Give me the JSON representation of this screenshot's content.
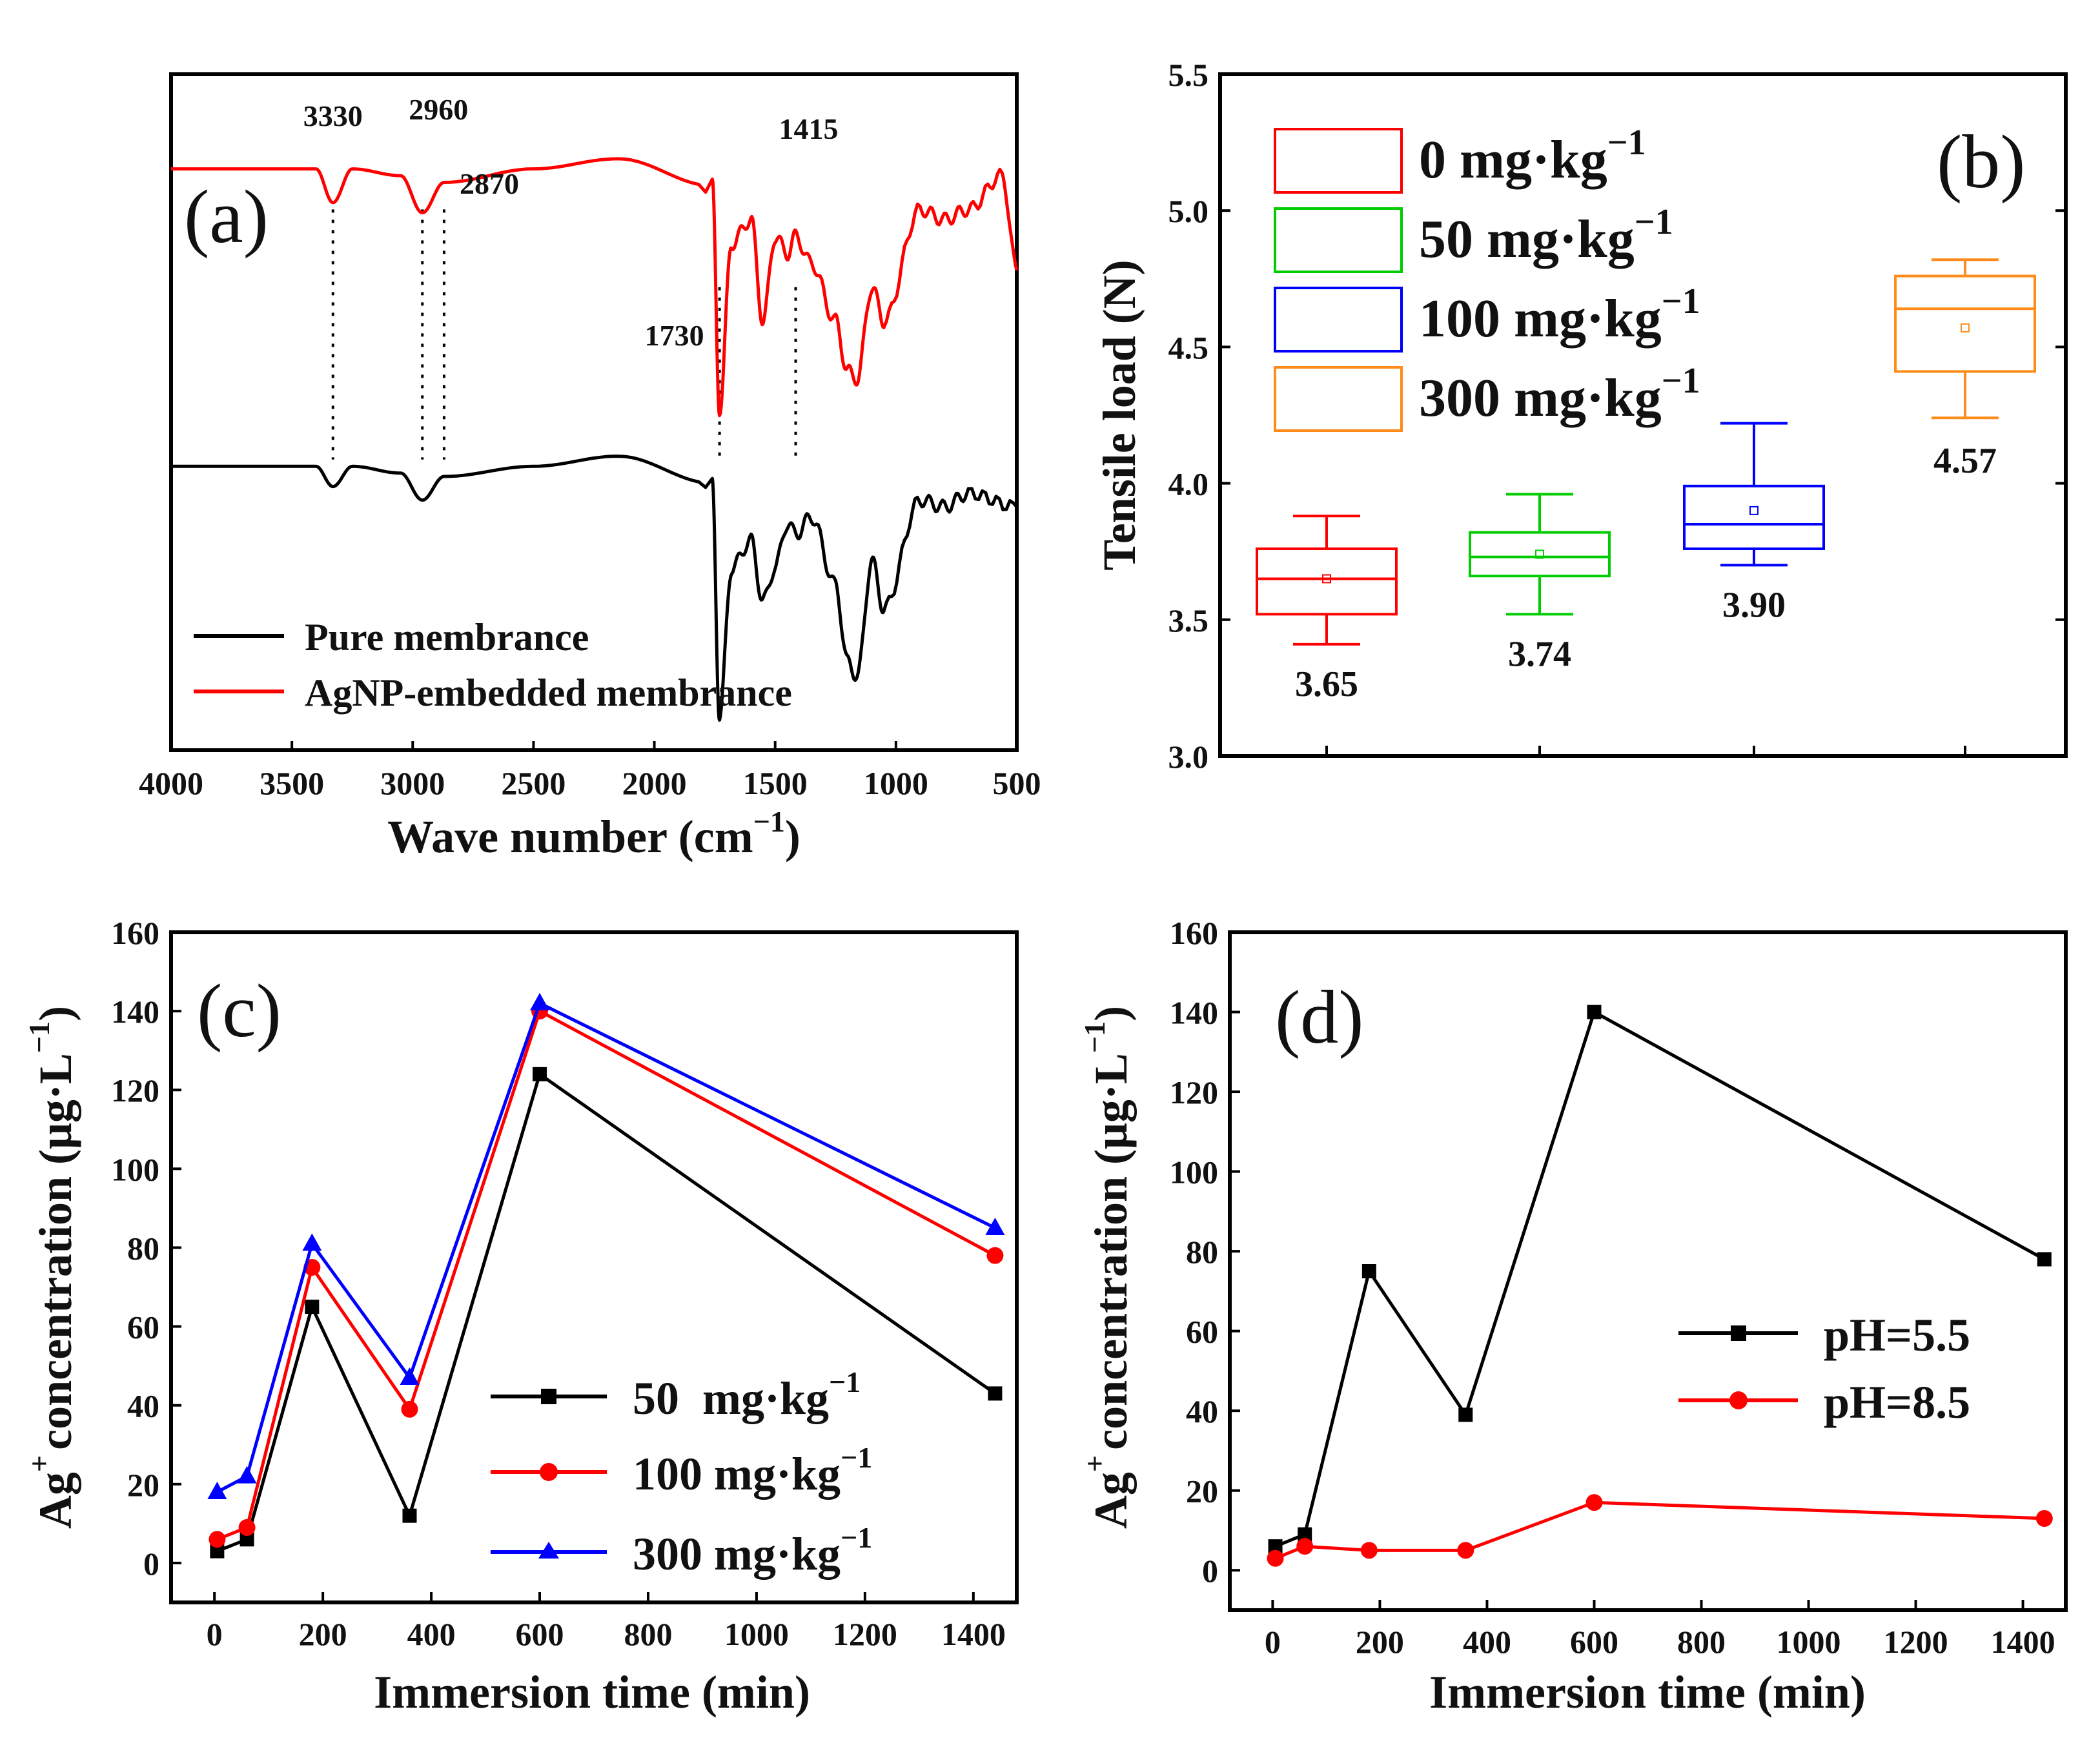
{
  "chart_data": [
    {
      "panel": "(a)",
      "type": "line",
      "title": "",
      "xlabel": "Wave number (cm",
      "xlabel_sup": "−1",
      "xlabel_end": ")",
      "ylabel": "",
      "xlim": [
        4000,
        500
      ],
      "xticks": [
        4000,
        3500,
        3000,
        2500,
        2000,
        1500,
        1000,
        500
      ],
      "series": [
        {
          "name": "Pure membrance",
          "color": "#000000",
          "baseline": 0.42,
          "x": [
            4000,
            3400,
            3330,
            3250,
            3050,
            2960,
            2870,
            2500,
            2150,
            1760,
            1730,
            1680,
            1600,
            1550,
            1500,
            1450,
            1415,
            1350,
            1250,
            1200,
            1160,
            1100,
            1050,
            900,
            800,
            700,
            500
          ],
          "y": [
            0.0,
            0.0,
            -0.06,
            0.0,
            -0.02,
            -0.1,
            -0.03,
            0.0,
            0.03,
            -0.05,
            -0.74,
            -0.3,
            -0.22,
            -0.4,
            -0.3,
            -0.17,
            -0.2,
            -0.15,
            -0.35,
            -0.58,
            -0.62,
            -0.28,
            -0.42,
            -0.1,
            -0.12,
            -0.08,
            -0.12
          ]
        },
        {
          "name": "AgNP-embedded membrance",
          "color": "#ff0000",
          "baseline": 0.86,
          "x": [
            4000,
            3400,
            3330,
            3250,
            3050,
            2960,
            2870,
            2500,
            2150,
            1760,
            1730,
            1680,
            1600,
            1550,
            1500,
            1450,
            1415,
            1350,
            1250,
            1200,
            1160,
            1100,
            1050,
            900,
            800,
            700,
            560,
            500
          ],
          "y": [
            0.0,
            0.0,
            -0.1,
            0.0,
            -0.02,
            -0.13,
            -0.04,
            0.0,
            0.03,
            -0.05,
            -0.71,
            -0.22,
            -0.15,
            -0.45,
            -0.2,
            -0.25,
            -0.2,
            -0.28,
            -0.45,
            -0.6,
            -0.62,
            -0.35,
            -0.45,
            -0.12,
            -0.15,
            -0.12,
            -0.02,
            -0.3
          ]
        }
      ],
      "annotations": [
        {
          "text": "3330",
          "x": 3330
        },
        {
          "text": "2960",
          "x": 2960
        },
        {
          "text": "2870",
          "x": 2870
        },
        {
          "text": "1730",
          "x": 1730
        },
        {
          "text": "1415",
          "x": 1415
        }
      ],
      "legend": "bottom-left"
    },
    {
      "panel": "(b)",
      "type": "box",
      "ylabel": "Tensile load (N)",
      "ylim": [
        3.0,
        5.5
      ],
      "yticks": [
        "3.0",
        "3.5",
        "4.0",
        "4.5",
        "5.0",
        "5.5"
      ],
      "series": [
        {
          "name": "0 mg·kg",
          "color": "#ff0000",
          "whisker_low": 3.41,
          "q1": 3.52,
          "median": 3.65,
          "q3": 3.76,
          "whisker_high": 3.88,
          "mean": 3.65,
          "label": "3.65"
        },
        {
          "name": "50 mg·kg",
          "color": "#00cc00",
          "whisker_low": 3.52,
          "q1": 3.66,
          "median": 3.73,
          "q3": 3.82,
          "whisker_high": 3.96,
          "mean": 3.74,
          "label": "3.74"
        },
        {
          "name": "100 mg·kg",
          "color": "#0000ff",
          "whisker_low": 3.7,
          "q1": 3.76,
          "median": 3.85,
          "q3": 3.99,
          "whisker_high": 4.22,
          "mean": 3.9,
          "label": "3.90"
        },
        {
          "name": "300 mg·kg",
          "color": "#ff8c1a",
          "whisker_low": 4.24,
          "q1": 4.41,
          "median": 4.64,
          "q3": 4.76,
          "whisker_high": 4.82,
          "mean": 4.57,
          "label": "4.57"
        }
      ],
      "unit_sup": "−1",
      "legend": "top-left"
    },
    {
      "panel": "(c)",
      "type": "line",
      "xlabel": "Immersion time (min)",
      "ylabel": "concentration (μg·L",
      "ylabel_prefix": "Ag",
      "ylabel_prefix_sup": "+",
      "ylabel_sup": "−1",
      "ylabel_end": ")",
      "xlim": [
        -80,
        1480
      ],
      "ylim": [
        -10,
        160
      ],
      "xticks": [
        0,
        200,
        400,
        600,
        800,
        1000,
        1200,
        1400
      ],
      "yticks": [
        0,
        20,
        40,
        60,
        80,
        100,
        120,
        140,
        160
      ],
      "x": [
        5,
        60,
        180,
        360,
        600,
        1440
      ],
      "series": [
        {
          "name": "50  mg·kg",
          "color": "#000000",
          "marker": "square",
          "values": [
            3,
            6,
            65,
            12,
            124,
            43
          ]
        },
        {
          "name": "100 mg·kg",
          "color": "#ff0000",
          "marker": "circle",
          "values": [
            6,
            9,
            75,
            39,
            140,
            78
          ]
        },
        {
          "name": "300 mg·kg",
          "color": "#0000ff",
          "marker": "triangle",
          "values": [
            18,
            22,
            81,
            47,
            142,
            85
          ]
        }
      ],
      "unit_sup": "−1",
      "legend": "bottom-right"
    },
    {
      "panel": "(d)",
      "type": "line",
      "xlabel": "Immersion time (min)",
      "ylabel": "concentration (μg·L",
      "ylabel_prefix": "Ag",
      "ylabel_prefix_sup": "+",
      "ylabel_sup": "−1",
      "ylabel_end": ")",
      "xlim": [
        -80,
        1480
      ],
      "ylim": [
        -10,
        160
      ],
      "xticks": [
        0,
        200,
        400,
        600,
        800,
        1000,
        1200,
        1400
      ],
      "yticks": [
        0,
        20,
        40,
        60,
        80,
        100,
        120,
        140,
        160
      ],
      "x": [
        5,
        60,
        180,
        360,
        600,
        1440
      ],
      "series": [
        {
          "name": "pH=5.5",
          "color": "#000000",
          "marker": "square",
          "values": [
            6,
            9,
            75,
            39,
            140,
            78
          ]
        },
        {
          "name": "pH=8.5",
          "color": "#ff0000",
          "marker": "circle",
          "values": [
            3,
            6,
            5,
            5,
            17,
            13
          ]
        }
      ],
      "legend": "center-right"
    }
  ]
}
